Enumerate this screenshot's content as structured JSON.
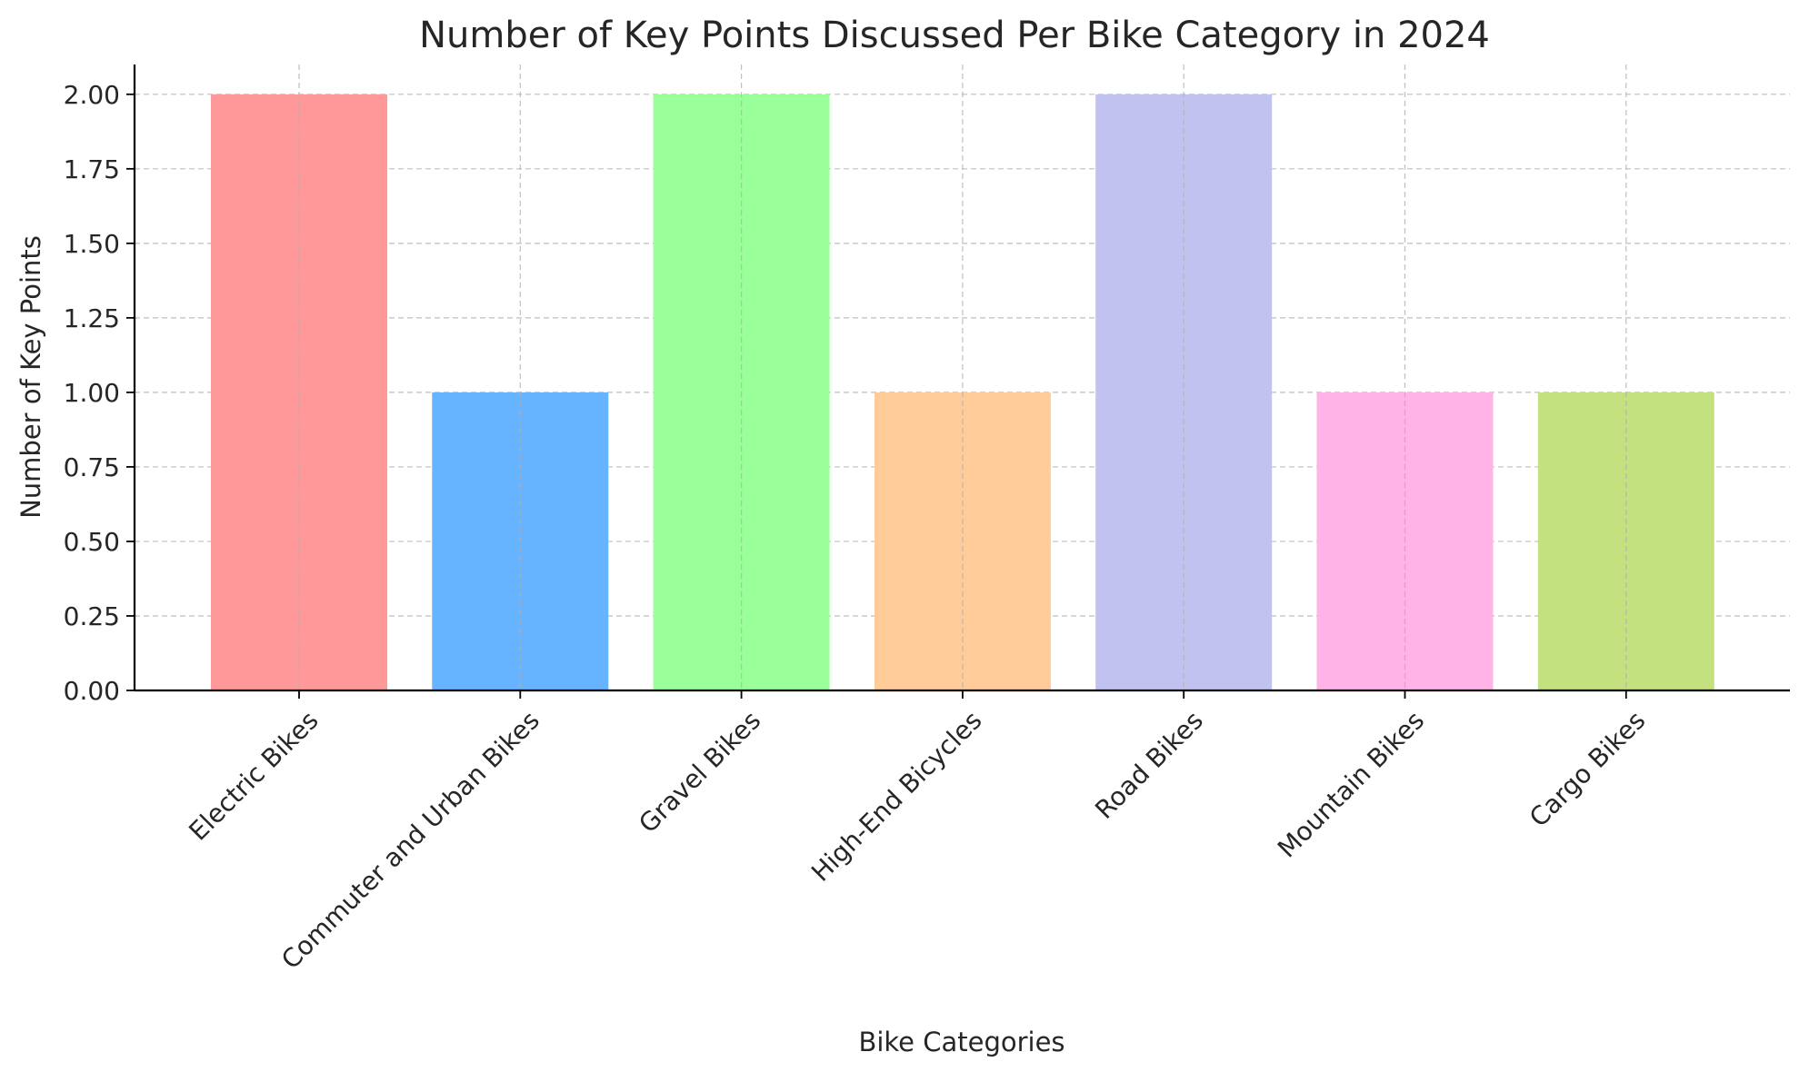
{
  "chart_data": {
    "type": "bar",
    "title": "Number of Key Points Discussed Per Bike Category in 2024",
    "xlabel": "Bike Categories",
    "ylabel": "Number of Key Points",
    "categories": [
      "Electric Bikes",
      "Commuter and Urban Bikes",
      "Gravel Bikes",
      "High-End Bicycles",
      "Road Bikes",
      "Mountain Bikes",
      "Cargo Bikes"
    ],
    "values": [
      2,
      1,
      2,
      1,
      2,
      1,
      1
    ],
    "colors": [
      "#ff9999",
      "#66b3ff",
      "#99ff99",
      "#ffcc99",
      "#c2c2f0",
      "#ffb3e6",
      "#c4e17f"
    ],
    "ylim": [
      0,
      2.1
    ],
    "yticks": [
      "0.00",
      "0.25",
      "0.50",
      "0.75",
      "1.00",
      "1.25",
      "1.50",
      "1.75",
      "2.00"
    ],
    "grid": true
  }
}
